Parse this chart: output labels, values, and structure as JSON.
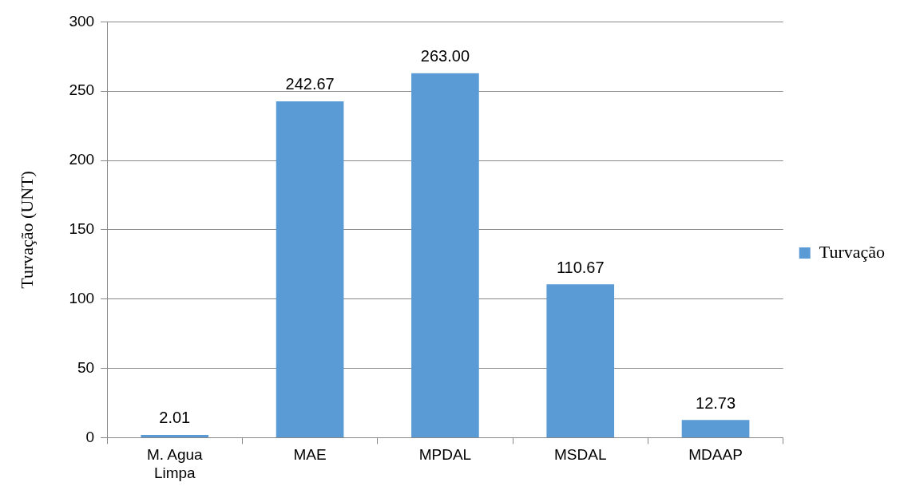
{
  "chart_data": {
    "type": "bar",
    "ylabel": "Turvação (UNT)",
    "categories": [
      "M. Agua Limpa",
      "MAE",
      "MPDAL",
      "MSDAL",
      "MDAAP"
    ],
    "series": [
      {
        "name": "Turvação",
        "color": "#5b9bd5",
        "values": [
          2.01,
          242.67,
          263.0,
          110.67,
          12.73
        ]
      }
    ],
    "value_labels": [
      "2.01",
      "242.67",
      "263.00",
      "110.67",
      "12.73"
    ],
    "ylim": [
      0,
      300
    ],
    "yticks": [
      0,
      50,
      100,
      150,
      200,
      250,
      300
    ],
    "grid": "y",
    "legend": "right"
  }
}
